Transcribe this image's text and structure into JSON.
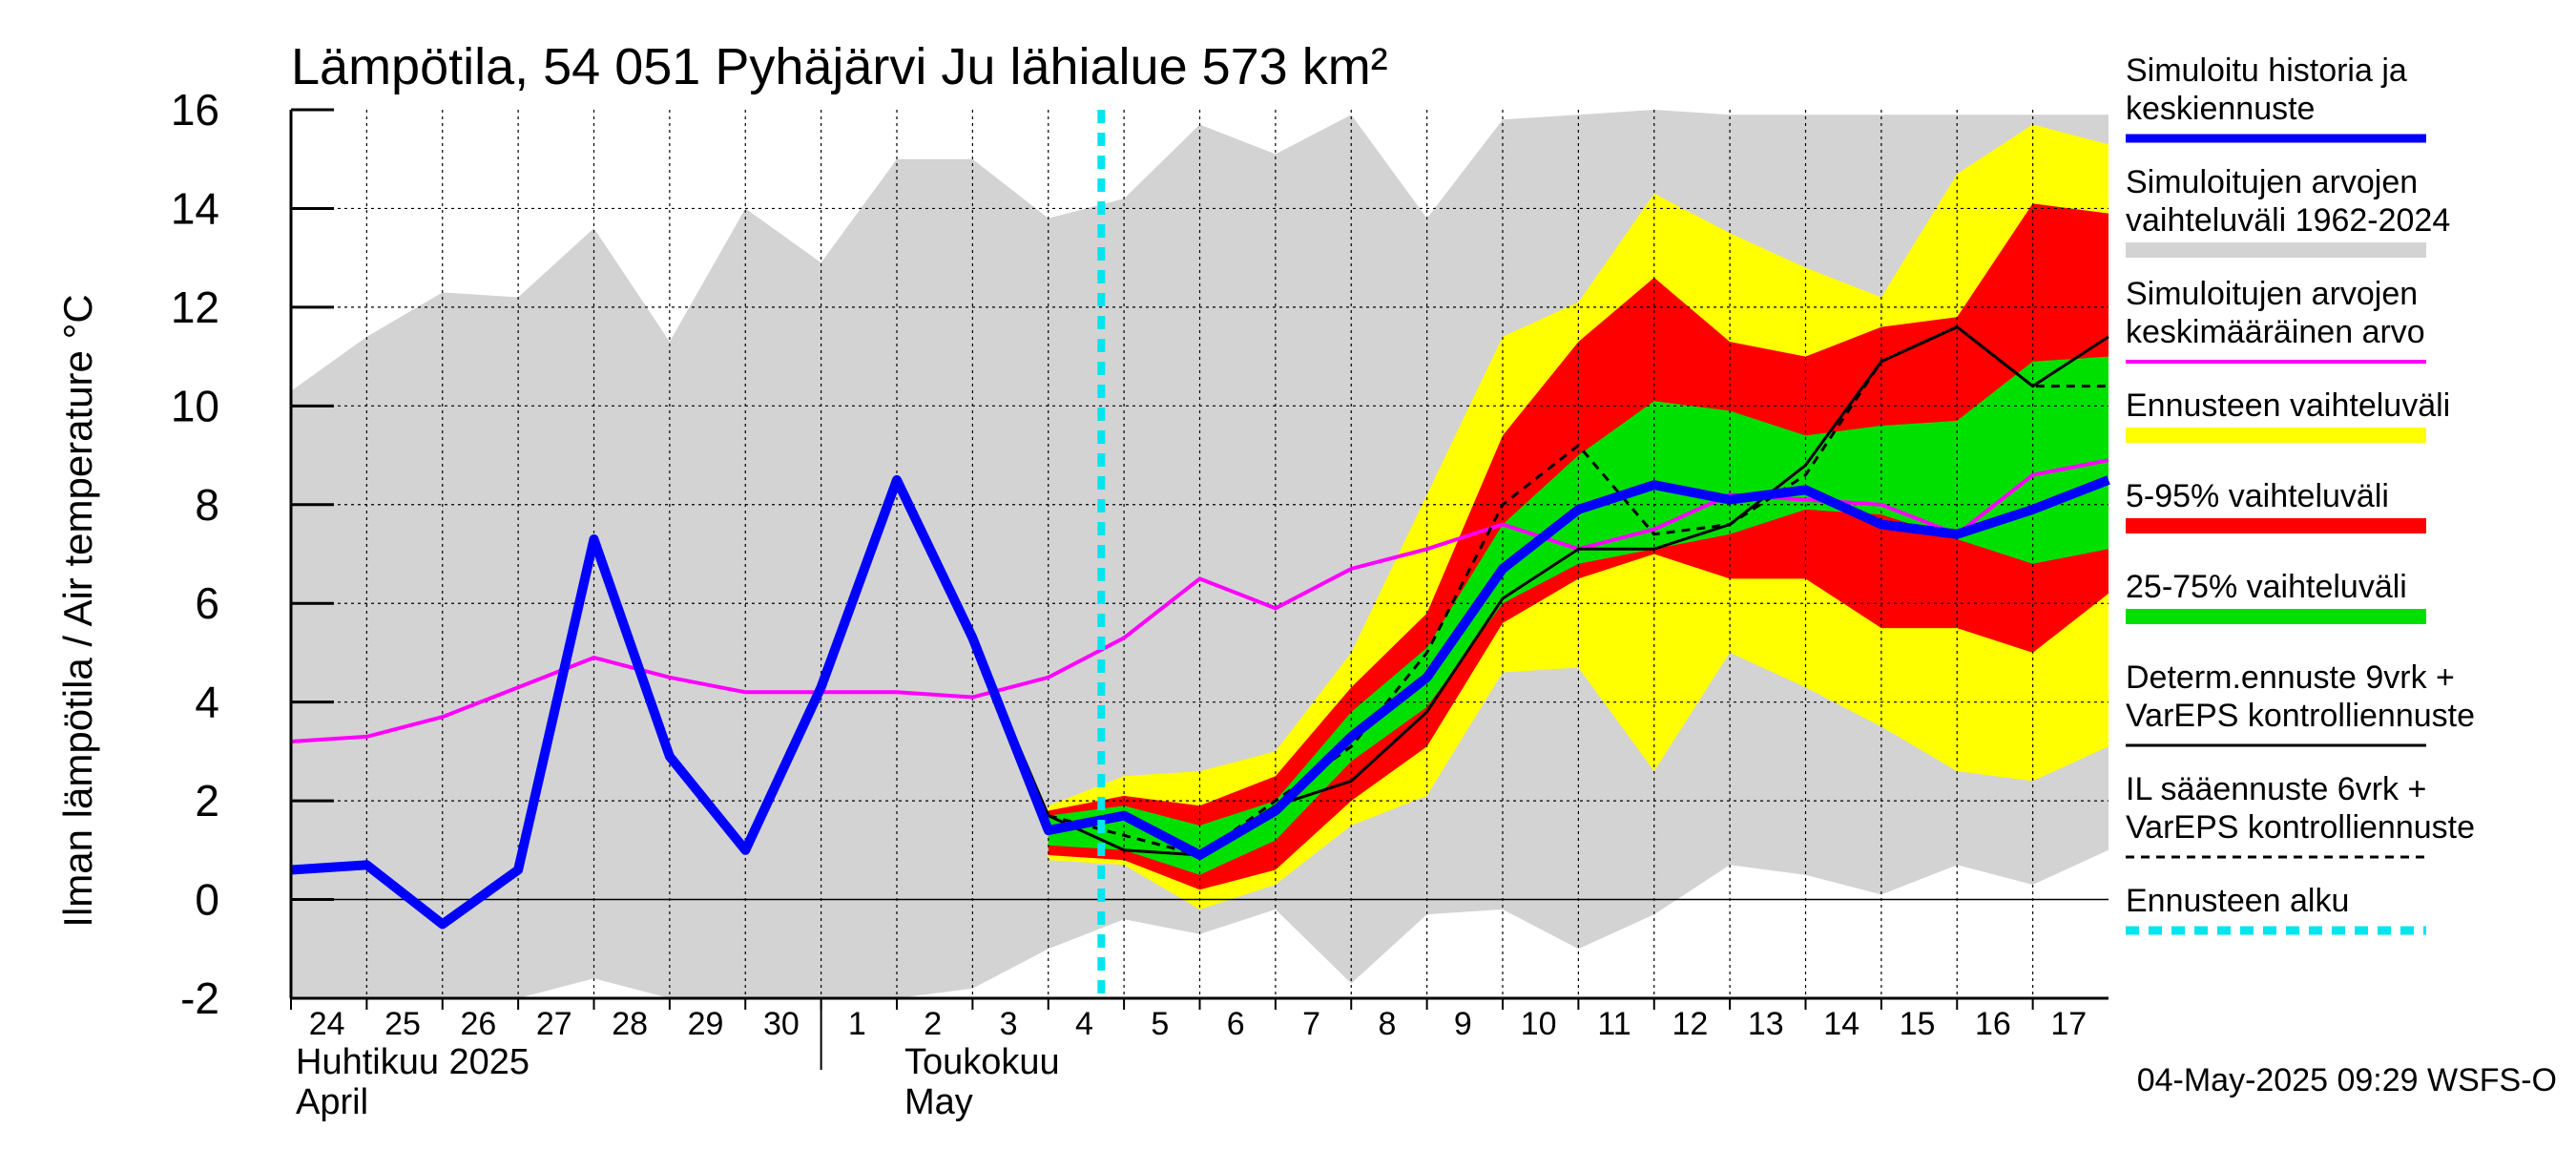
{
  "chart_data": {
    "type": "area",
    "title": "Lämpötila, 54 051 Pyhäjärvi Ju lähialue 573 km²",
    "ylabel": "Ilman lämpötila / Air temperature   °C",
    "ylim": [
      -2,
      16
    ],
    "yticks": [
      -2,
      0,
      2,
      4,
      6,
      8,
      10,
      12,
      14,
      16
    ],
    "grid": true,
    "legend_position": "right",
    "x_day_labels": [
      "24",
      "25",
      "26",
      "27",
      "28",
      "29",
      "30",
      "1",
      "2",
      "3",
      "4",
      "5",
      "6",
      "7",
      "8",
      "9",
      "10",
      "11",
      "12",
      "13",
      "14",
      "15",
      "16",
      "17"
    ],
    "month_labels": [
      {
        "fi": "Huhtikuu  2025",
        "en": "April"
      },
      {
        "fi": "Toukokuu",
        "en": "May"
      }
    ],
    "forecast_start_index": 10.7,
    "timestamp": "04-May-2025 09:29 WSFS-O",
    "colors": {
      "history_range": "#d3d3d3",
      "forecast_range": "#ffff00",
      "p5_95": "#ff0000",
      "p25_75": "#00e000",
      "median": "#0000ff",
      "mean": "#ff00ff",
      "determ": "#000000",
      "forecast_start": "#00e5ee"
    },
    "legend": [
      {
        "text": [
          "Simuloitu historia ja",
          "keskiennuste"
        ],
        "color": "#0000ff",
        "style": "thick"
      },
      {
        "text": [
          "Simuloitujen arvojen",
          "vaihteluväli 1962-2024"
        ],
        "color": "#d3d3d3",
        "style": "band"
      },
      {
        "text": [
          "Simuloitujen arvojen",
          "keskimääräinen arvo"
        ],
        "color": "#ff00ff",
        "style": "thin"
      },
      {
        "text": [
          "Ennusteen vaihteluväli"
        ],
        "color": "#ffff00",
        "style": "band"
      },
      {
        "text": [
          "5-95% vaihteluväli"
        ],
        "color": "#ff0000",
        "style": "band"
      },
      {
        "text": [
          "25-75% vaihteluväli"
        ],
        "color": "#00e000",
        "style": "band"
      },
      {
        "text": [
          "Determ.ennuste 9vrk +",
          "VarEPS kontrolliennuste"
        ],
        "color": "#000000",
        "style": "line"
      },
      {
        "text": [
          "IL sääennuste 6vrk  +",
          "  VarEPS kontrolliennuste"
        ],
        "color": "#000000",
        "style": "dashed"
      },
      {
        "text": [
          "Ennusteen alku"
        ],
        "color": "#00e5ee",
        "style": "cyan"
      }
    ],
    "series": {
      "history_range": {
        "x": [
          0,
          1,
          2,
          3,
          4,
          5,
          6,
          7,
          8,
          9,
          10,
          11,
          12,
          13,
          14,
          15,
          16,
          17,
          18,
          19,
          20,
          21,
          22,
          23,
          24
        ],
        "upper": [
          10.3,
          11.4,
          12.3,
          12.2,
          13.6,
          11.3,
          14.0,
          12.9,
          15.0,
          15.0,
          13.8,
          14.2,
          15.7,
          15.1,
          15.9,
          13.8,
          15.8,
          15.9,
          16.0,
          15.9,
          15.9,
          15.9,
          15.9,
          15.9,
          15.9
        ],
        "lower": [
          -2.0,
          -2.0,
          -2.0,
          -2.0,
          -1.6,
          -2.0,
          -2.0,
          -2.0,
          -2.0,
          -1.8,
          -1.0,
          -0.4,
          -0.7,
          -0.2,
          -1.7,
          -0.3,
          -0.2,
          -1.0,
          -0.3,
          0.7,
          0.5,
          0.1,
          0.7,
          0.3,
          1.0
        ]
      },
      "forecast_range": {
        "x": [
          10,
          11,
          12,
          13,
          14,
          15,
          16,
          17,
          18,
          19,
          20,
          21,
          22,
          23,
          24
        ],
        "upper": [
          1.9,
          2.5,
          2.6,
          3.0,
          5.0,
          8.2,
          11.4,
          12.1,
          14.3,
          13.5,
          12.8,
          12.2,
          14.7,
          15.7,
          15.3
        ],
        "lower": [
          0.8,
          0.7,
          -0.2,
          0.3,
          1.5,
          2.1,
          4.6,
          4.7,
          2.6,
          5.0,
          4.3,
          3.5,
          2.6,
          2.4,
          3.1
        ]
      },
      "p5_95": {
        "x": [
          10,
          11,
          12,
          13,
          14,
          15,
          16,
          17,
          18,
          19,
          20,
          21,
          22,
          23,
          24
        ],
        "upper": [
          1.8,
          2.1,
          1.9,
          2.5,
          4.3,
          5.8,
          9.4,
          11.3,
          12.6,
          11.3,
          11.0,
          11.6,
          11.8,
          14.1,
          13.9
        ],
        "lower": [
          0.9,
          0.8,
          0.2,
          0.6,
          2.0,
          3.1,
          5.6,
          6.5,
          7.0,
          6.5,
          6.5,
          5.5,
          5.5,
          5.0,
          6.2
        ]
      },
      "p25_75": {
        "x": [
          10,
          11,
          12,
          13,
          14,
          15,
          16,
          17,
          18,
          19,
          20,
          21,
          22,
          23,
          24
        ],
        "upper": [
          1.7,
          1.9,
          1.5,
          2.0,
          3.8,
          5.1,
          7.6,
          9.0,
          10.1,
          9.9,
          9.4,
          9.6,
          9.7,
          10.9,
          11.0
        ],
        "lower": [
          1.1,
          1.0,
          0.5,
          1.2,
          2.8,
          3.9,
          6.0,
          6.8,
          7.1,
          7.4,
          7.9,
          7.8,
          7.3,
          6.8,
          7.1
        ]
      },
      "median": {
        "x": [
          0,
          1,
          2,
          3,
          4,
          5,
          6,
          7,
          8,
          9,
          10,
          11,
          12,
          13,
          14,
          15,
          16,
          17,
          18,
          19,
          20,
          21,
          22,
          23,
          24
        ],
        "values": [
          0.6,
          0.7,
          -0.5,
          0.6,
          7.3,
          2.9,
          1.0,
          4.3,
          8.5,
          5.3,
          1.4,
          1.7,
          0.9,
          1.8,
          3.3,
          4.5,
          6.7,
          7.9,
          8.4,
          8.1,
          8.3,
          7.6,
          7.4,
          7.9,
          8.5
        ]
      },
      "mean": {
        "x": [
          0,
          1,
          2,
          3,
          4,
          5,
          6,
          7,
          8,
          9,
          10,
          11,
          12,
          13,
          14,
          15,
          16,
          17,
          18,
          19,
          20,
          21,
          22,
          23,
          24
        ],
        "values": [
          3.2,
          3.3,
          3.7,
          4.3,
          4.9,
          4.5,
          4.2,
          4.2,
          4.2,
          4.1,
          4.5,
          5.3,
          6.5,
          5.9,
          6.7,
          7.1,
          7.6,
          7.1,
          7.5,
          8.2,
          8.1,
          8.0,
          7.4,
          8.6,
          8.9
        ]
      },
      "determ": {
        "x": [
          8,
          9,
          10,
          11,
          12,
          13,
          14,
          15,
          16,
          17,
          18,
          19,
          20,
          21,
          22,
          23,
          24
        ],
        "values": [
          8.5,
          5.3,
          1.7,
          1.0,
          0.9,
          1.9,
          2.4,
          3.8,
          6.1,
          7.1,
          7.1,
          7.6,
          8.8,
          10.9,
          11.6,
          10.4,
          11.4
        ]
      },
      "il_forecast": {
        "x": [
          10,
          11,
          12,
          13,
          14,
          15,
          16,
          17,
          18,
          19,
          20,
          21,
          22,
          23,
          24
        ],
        "values": [
          1.7,
          1.3,
          0.9,
          2.0,
          3.1,
          5.0,
          8.0,
          9.2,
          7.4,
          7.6,
          8.6,
          10.9,
          11.6,
          10.4,
          10.4
        ]
      }
    }
  }
}
